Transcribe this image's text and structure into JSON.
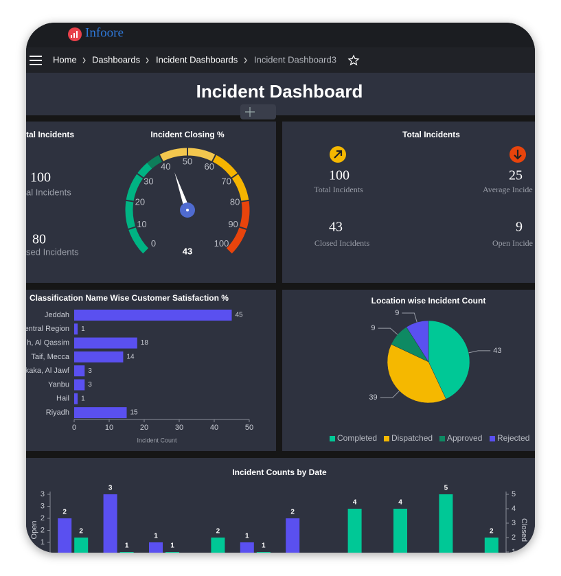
{
  "app": {
    "logo": "Infoore",
    "breadcrumbs": [
      "Home",
      "Dashboards",
      "Incident Dashboards",
      "Incident Dashboard3"
    ]
  },
  "dashboard": {
    "title": "Incident Dashboard"
  },
  "kpi_left": {
    "title": "tal Incidents",
    "items": [
      {
        "value": 100,
        "label": "al Incidents"
      },
      {
        "value": 80,
        "label": "sed Incidents"
      }
    ]
  },
  "kpi_right": {
    "title": "Total Incidents",
    "items": [
      {
        "value": 100,
        "label": "Total Incidents"
      },
      {
        "value": 25,
        "label": "Average Incide"
      },
      {
        "value": 43,
        "label": "Closed Incidents"
      },
      {
        "value": 9,
        "label": "Open Incide"
      }
    ]
  },
  "chart_data": [
    {
      "type": "gauge",
      "title": "Incident Closing %",
      "value": 43,
      "ylim": [
        0,
        100
      ],
      "yticks": [
        0,
        10,
        20,
        30,
        40,
        50,
        60,
        70,
        80,
        90,
        100
      ]
    },
    {
      "type": "hbar",
      "title": "Classification Name Wise Customer Satisfaction %",
      "categories": [
        "Jeddah",
        "entral Region",
        "h, Al Qassim",
        "Taif, Mecca",
        "kaka, Al Jawf",
        "Yanbu",
        "Hail",
        "Riyadh"
      ],
      "values": [
        45,
        1,
        18,
        14,
        3,
        3,
        1,
        15
      ],
      "color": "#5a50f0",
      "xlim": [
        0,
        50
      ],
      "xticks": [
        0,
        10,
        20,
        30,
        40,
        50
      ],
      "xlabel": "Incident Count"
    },
    {
      "type": "pie",
      "title": "Location wise Incident Count",
      "categories": [
        "Completed",
        "Dispatched",
        "Approved",
        "Rejected"
      ],
      "values": [
        43,
        39,
        9,
        9
      ],
      "colors": [
        "#00c896",
        "#f5b800",
        "#0e8a63",
        "#5a50f0"
      ],
      "legend": "bottom"
    },
    {
      "type": "bar",
      "title": "Incident Counts by Date",
      "categories": [
        null,
        null,
        null,
        null,
        null,
        null,
        null,
        null,
        null,
        null
      ],
      "series": [
        {
          "name": "Open",
          "color": "#5a50f0",
          "values": [
            2,
            3,
            1,
            null,
            1,
            2,
            null,
            null,
            null,
            null
          ]
        },
        {
          "name": "Closed",
          "color": "#00c896",
          "axis": "y2",
          "values": [
            2,
            1,
            1,
            2,
            1,
            null,
            4,
            4,
            5,
            2
          ]
        }
      ],
      "ylim": [
        0,
        3
      ],
      "yticks": [
        1,
        {
          "value": 1.5,
          "label": "2"
        },
        2,
        {
          "value": 2.5,
          "label": "3"
        },
        3
      ],
      "y2lim": [
        0,
        5
      ],
      "y2ticks": [
        1,
        2,
        3,
        4,
        5
      ]
    }
  ]
}
